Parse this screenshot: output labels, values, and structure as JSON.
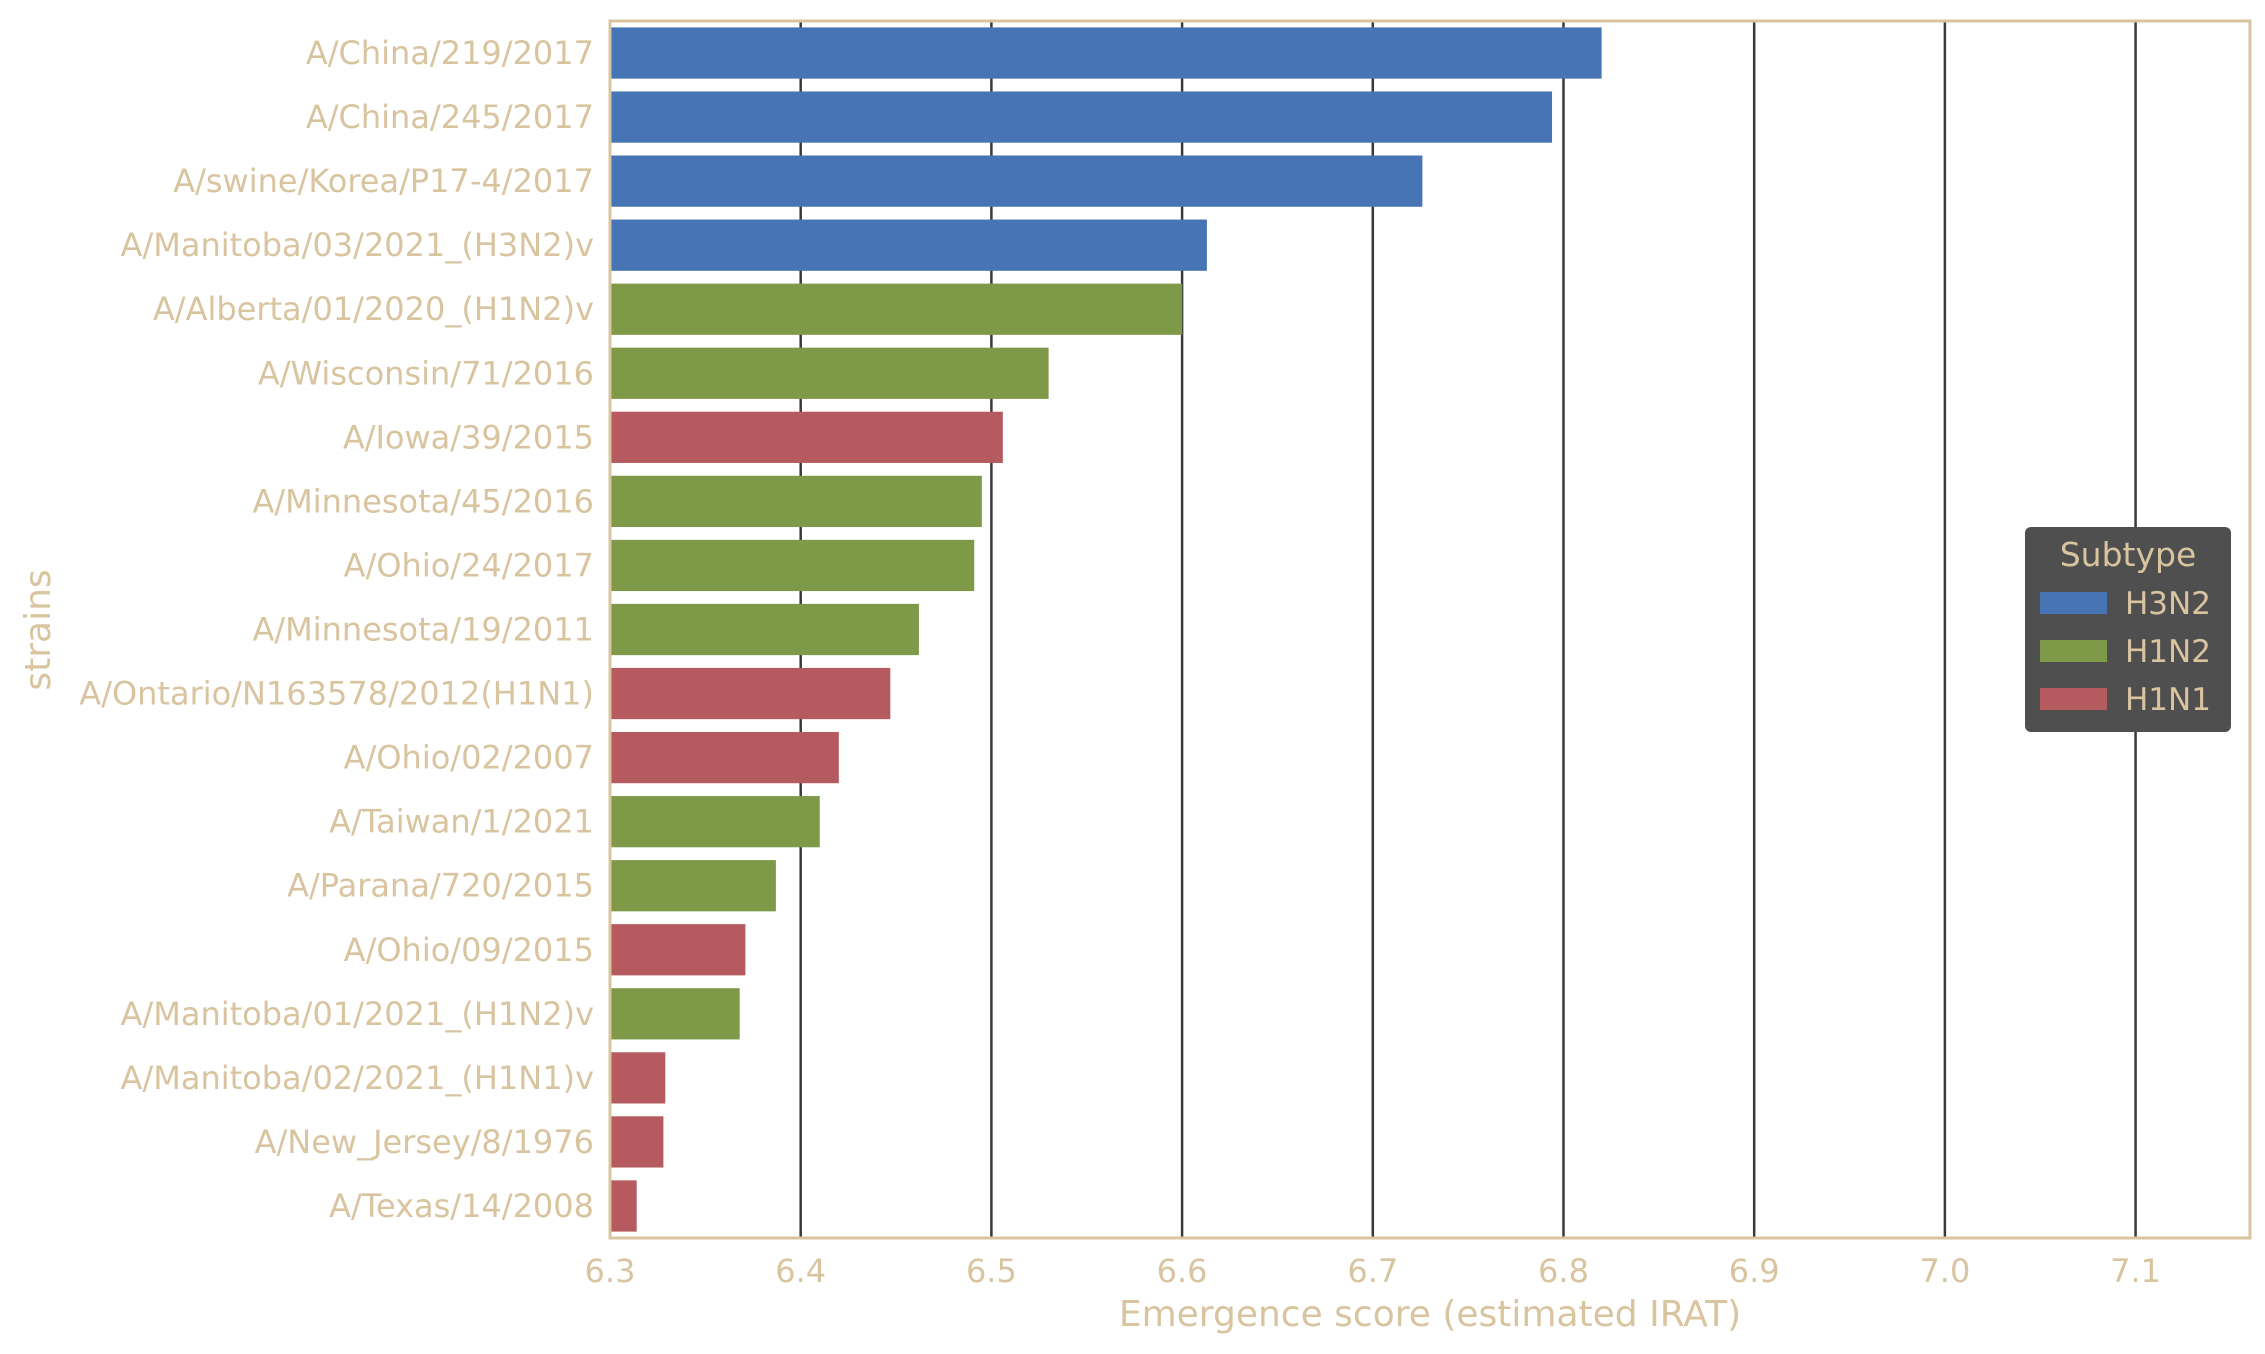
{
  "chart_data": {
    "type": "bar",
    "orientation": "horizontal",
    "title": "",
    "xlabel": "Emergence score (estimated IRAT)",
    "ylabel": "strains",
    "xlim": [
      6.3,
      7.16
    ],
    "xticks": [
      "6.3",
      "6.4",
      "6.5",
      "6.6",
      "6.7",
      "6.8",
      "6.9",
      "7.0",
      "7.1"
    ],
    "grid": "vertical",
    "legend": {
      "title": "Subtype",
      "placement": "center-right",
      "entries": [
        {
          "label": "H3N2",
          "color": "#4674b4"
        },
        {
          "label": "H1N2",
          "color": "#7e9a48"
        },
        {
          "label": "H1N1",
          "color": "#b55a5e"
        }
      ]
    },
    "colors": {
      "H3N2": "#4674b4",
      "H1N2": "#7e9a48",
      "H1N1": "#b55a5e",
      "text": "#d9c4a0",
      "grid": "#3a3a3a",
      "frame": "#d9c4a0",
      "legend_bg": "#4f4f4f"
    },
    "bars": [
      {
        "strain": "A/China/219/2017",
        "value": 6.82,
        "subtype": "H3N2"
      },
      {
        "strain": "A/China/245/2017",
        "value": 6.794,
        "subtype": "H3N2"
      },
      {
        "strain": "A/swine/Korea/P17-4/2017",
        "value": 6.726,
        "subtype": "H3N2"
      },
      {
        "strain": "A/Manitoba/03/2021_(H3N2)v",
        "value": 6.613,
        "subtype": "H3N2"
      },
      {
        "strain": "A/Alberta/01/2020_(H1N2)v",
        "value": 6.6,
        "subtype": "H1N2"
      },
      {
        "strain": "A/Wisconsin/71/2016",
        "value": 6.53,
        "subtype": "H1N2"
      },
      {
        "strain": "A/Iowa/39/2015",
        "value": 6.506,
        "subtype": "H1N1"
      },
      {
        "strain": "A/Minnesota/45/2016",
        "value": 6.495,
        "subtype": "H1N2"
      },
      {
        "strain": "A/Ohio/24/2017",
        "value": 6.491,
        "subtype": "H1N2"
      },
      {
        "strain": "A/Minnesota/19/2011",
        "value": 6.462,
        "subtype": "H1N2"
      },
      {
        "strain": "A/Ontario/N163578/2012(H1N1)",
        "value": 6.447,
        "subtype": "H1N1"
      },
      {
        "strain": "A/Ohio/02/2007",
        "value": 6.42,
        "subtype": "H1N1"
      },
      {
        "strain": "A/Taiwan/1/2021",
        "value": 6.41,
        "subtype": "H1N2"
      },
      {
        "strain": "A/Parana/720/2015",
        "value": 6.387,
        "subtype": "H1N2"
      },
      {
        "strain": "A/Ohio/09/2015",
        "value": 6.371,
        "subtype": "H1N1"
      },
      {
        "strain": "A/Manitoba/01/2021_(H1N2)v",
        "value": 6.368,
        "subtype": "H1N2"
      },
      {
        "strain": "A/Manitoba/02/2021_(H1N1)v",
        "value": 6.329,
        "subtype": "H1N1"
      },
      {
        "strain": "A/New_Jersey/8/1976",
        "value": 6.328,
        "subtype": "H1N1"
      },
      {
        "strain": "A/Texas/14/2008",
        "value": 6.314,
        "subtype": "H1N1"
      }
    ]
  }
}
